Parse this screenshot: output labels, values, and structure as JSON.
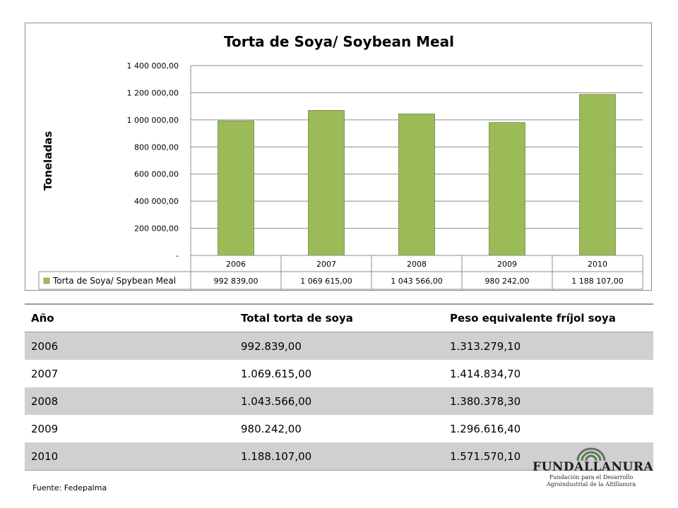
{
  "chart_data": {
    "type": "bar",
    "title": "Torta de Soya/ Soybean Meal",
    "ylabel": "Toneladas",
    "xlabel": "",
    "categories": [
      "2006",
      "2007",
      "2008",
      "2009",
      "2010"
    ],
    "series": [
      {
        "name": "Torta de Soya/ Spybean Meal",
        "values": [
          992839,
          1069615,
          1043566,
          980242,
          1188107
        ],
        "value_labels": [
          "992 839,00",
          "1 069 615,00",
          "1 043 566,00",
          "980 242,00",
          "1 188 107,00"
        ],
        "color": "#9bbb59"
      }
    ],
    "ylim": [
      0,
      1400000
    ],
    "y_ticks": [
      0,
      200000,
      400000,
      600000,
      800000,
      1000000,
      1200000,
      1400000
    ],
    "y_tick_labels": [
      "-",
      "200 000,00",
      "400 000,00",
      "600 000,00",
      "800 000,00",
      "1 000 000,00",
      "1 200 000,00",
      "1 400 000,00"
    ],
    "grid": true,
    "legend": "data-table"
  },
  "table": {
    "headers": [
      "Año",
      "Total torta de soya",
      "Peso equivalente fríjol soya"
    ],
    "rows": [
      [
        "2006",
        "992.839,00",
        "1.313.279,10"
      ],
      [
        "2007",
        "1.069.615,00",
        "1.414.834,70"
      ],
      [
        "2008",
        "1.043.566,00",
        "1.380.378,30"
      ],
      [
        "2009",
        "980.242,00",
        "1.296.616,40"
      ],
      [
        "2010",
        "1.188.107,00",
        "1.571.570,10"
      ]
    ]
  },
  "footer": {
    "source": "Fuente: Fedepalma"
  },
  "logo": {
    "name": "FUNDALLANURA",
    "subtitle_line1": "Fundación para el Desarrollo",
    "subtitle_line2": "Agroindustrial de la Altillanura"
  }
}
